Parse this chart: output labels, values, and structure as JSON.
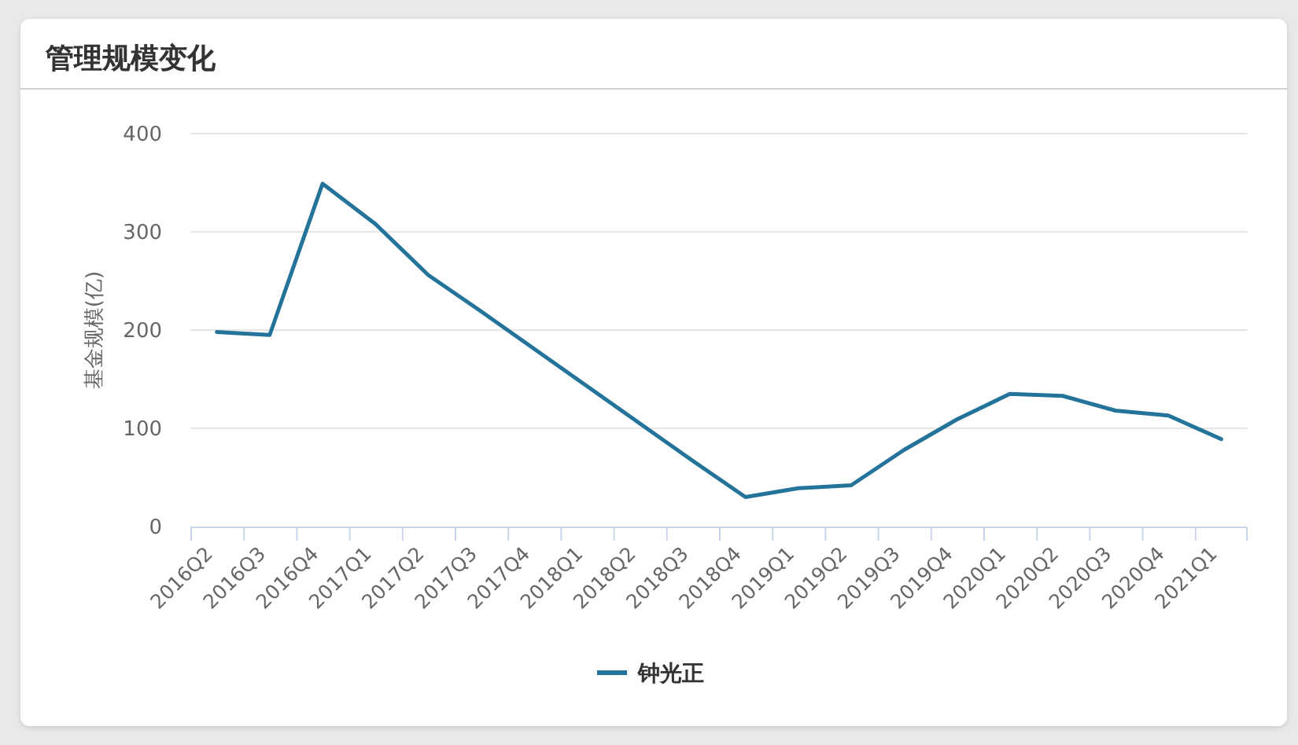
{
  "chart_data": {
    "type": "line",
    "title": "管理规模变化",
    "ylabel": "基金规模(亿)",
    "categories": [
      "2016Q2",
      "2016Q3",
      "2016Q4",
      "2017Q1",
      "2017Q2",
      "2017Q3",
      "2017Q4",
      "2018Q1",
      "2018Q2",
      "2018Q3",
      "2018Q4",
      "2019Q1",
      "2019Q2",
      "2019Q3",
      "2019Q4",
      "2020Q1",
      "2020Q2",
      "2020Q3",
      "2020Q4",
      "2021Q1"
    ],
    "series": [
      {
        "name": "钟光正",
        "color": "#23739a",
        "values": [
          198,
          195,
          349,
          308,
          256,
          219,
          181,
          143,
          105,
          67,
          30,
          39,
          42,
          78,
          109,
          135,
          133,
          118,
          113,
          89
        ]
      }
    ],
    "ylim": [
      0,
      400
    ],
    "yticks": [
      0,
      100,
      200,
      300,
      400
    ],
    "grid": "y",
    "legend": "bottom",
    "marker": "none",
    "line_style": "solid"
  }
}
